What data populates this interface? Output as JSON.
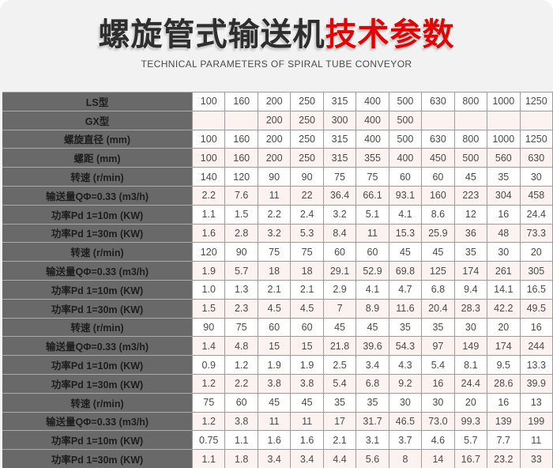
{
  "header": {
    "title_black": "螺旋管式输送机",
    "title_red": "技术参数",
    "subtitle": "TECHNICAL PARAMETERS OF SPIRAL TUBE CONVEYOR"
  },
  "colors": {
    "accent_red": "#e60000",
    "header_background": "#f2f2f2",
    "label_column_background": "#696969",
    "pink_row_background": "#fcf3f0",
    "table_border": "#9c9c9c"
  },
  "table": {
    "columns_count": 11,
    "rows": [
      {
        "label": "LS型",
        "values": [
          "100",
          "160",
          "200",
          "250",
          "315",
          "400",
          "500",
          "630",
          "800",
          "1000",
          "1250"
        ]
      },
      {
        "label": "GX型",
        "values": [
          "",
          "",
          "200",
          "250",
          "300",
          "400",
          "500",
          "",
          "",
          "",
          ""
        ]
      },
      {
        "label": "螺旋直径 (mm)",
        "values": [
          "100",
          "160",
          "200",
          "250",
          "315",
          "400",
          "500",
          "630",
          "800",
          "1000",
          "1250"
        ]
      },
      {
        "label": "螺距 (mm)",
        "values": [
          "100",
          "160",
          "200",
          "250",
          "315",
          "355",
          "400",
          "450",
          "500",
          "560",
          "630"
        ]
      },
      {
        "label": "转速 (r/min)",
        "values": [
          "140",
          "120",
          "90",
          "90",
          "75",
          "75",
          "60",
          "60",
          "45",
          "35",
          "30"
        ]
      },
      {
        "label": "输送量QΦ=0.33 (m3/h)",
        "values": [
          "2.2",
          "7.6",
          "11",
          "22",
          "36.4",
          "66.1",
          "93.1",
          "160",
          "223",
          "304",
          "458"
        ]
      },
      {
        "label": "功率Pd 1=10m (KW)",
        "values": [
          "1.1",
          "1.5",
          "2.2",
          "2.4",
          "3.2",
          "5.1",
          "4.1",
          "8.6",
          "12",
          "16",
          "24.4"
        ]
      },
      {
        "label": "功率Pd 1=30m (KW)",
        "values": [
          "1.6",
          "2.8",
          "3.2",
          "5.3",
          "8.4",
          "11",
          "15.3",
          "25.9",
          "36",
          "48",
          "73.3"
        ]
      },
      {
        "label": "转速 (r/min)",
        "values": [
          "120",
          "90",
          "75",
          "75",
          "60",
          "60",
          "45",
          "45",
          "35",
          "30",
          "20"
        ]
      },
      {
        "label": "输送量QΦ=0.33 (m3/h)",
        "values": [
          "1.9",
          "5.7",
          "18",
          "18",
          "29.1",
          "52.9",
          "69.8",
          "125",
          "174",
          "261",
          "305"
        ]
      },
      {
        "label": "功率Pd 1=10m (KW)",
        "values": [
          "1.0",
          "1.3",
          "2.1",
          "2.1",
          "2.9",
          "4.1",
          "4.7",
          "6.8",
          "9.4",
          "14.1",
          "16.5"
        ]
      },
      {
        "label": "功率Pd 1=30m (KW)",
        "values": [
          "1.5",
          "2.3",
          "4.5",
          "4.5",
          "7",
          "8.9",
          "11.6",
          "20.4",
          "28.3",
          "42.2",
          "49.5"
        ]
      },
      {
        "label": "转速 (r/min)",
        "values": [
          "90",
          "75",
          "60",
          "60",
          "45",
          "45",
          "35",
          "35",
          "30",
          "20",
          "16"
        ]
      },
      {
        "label": "输送量QΦ=0.33 (m3/h)",
        "values": [
          "1.4",
          "4.8",
          "15",
          "15",
          "21.8",
          "39.6",
          "54.3",
          "97",
          "149",
          "174",
          "244"
        ]
      },
      {
        "label": "功率Pd 1=10m (KW)",
        "values": [
          "0.9",
          "1.2",
          "1.9",
          "1.9",
          "2.5",
          "3.4",
          "4.3",
          "5.4",
          "8.1",
          "9.5",
          "13.3"
        ]
      },
      {
        "label": "功率Pd 1=30m (KW)",
        "values": [
          "1.2",
          "2.2",
          "3.8",
          "3.8",
          "5.4",
          "6.8",
          "9.2",
          "16",
          "24.4",
          "28.6",
          "39.9"
        ]
      },
      {
        "label": "转速 (r/min)",
        "values": [
          "75",
          "60",
          "45",
          "45",
          "35",
          "35",
          "30",
          "30",
          "20",
          "16",
          "13"
        ]
      },
      {
        "label": "输送量QΦ=0.33 (m3/h)",
        "values": [
          "1.2",
          "3.8",
          "11",
          "11",
          "17",
          "31.7",
          "46.5",
          "73.0",
          "99.3",
          "139",
          "199"
        ]
      },
      {
        "label": "功率Pd 1=10m (KW)",
        "values": [
          "0.75",
          "1.1",
          "1.6",
          "1.6",
          "2.1",
          "3.1",
          "3.7",
          "4.6",
          "5.7",
          "7.7",
          "11"
        ]
      },
      {
        "label": "功率Pd 1=30m (KW)",
        "values": [
          "1.1",
          "1.8",
          "3.4",
          "3.4",
          "4.4",
          "5.6",
          "8",
          "14",
          "16.7",
          "23.2",
          "33"
        ]
      }
    ]
  }
}
